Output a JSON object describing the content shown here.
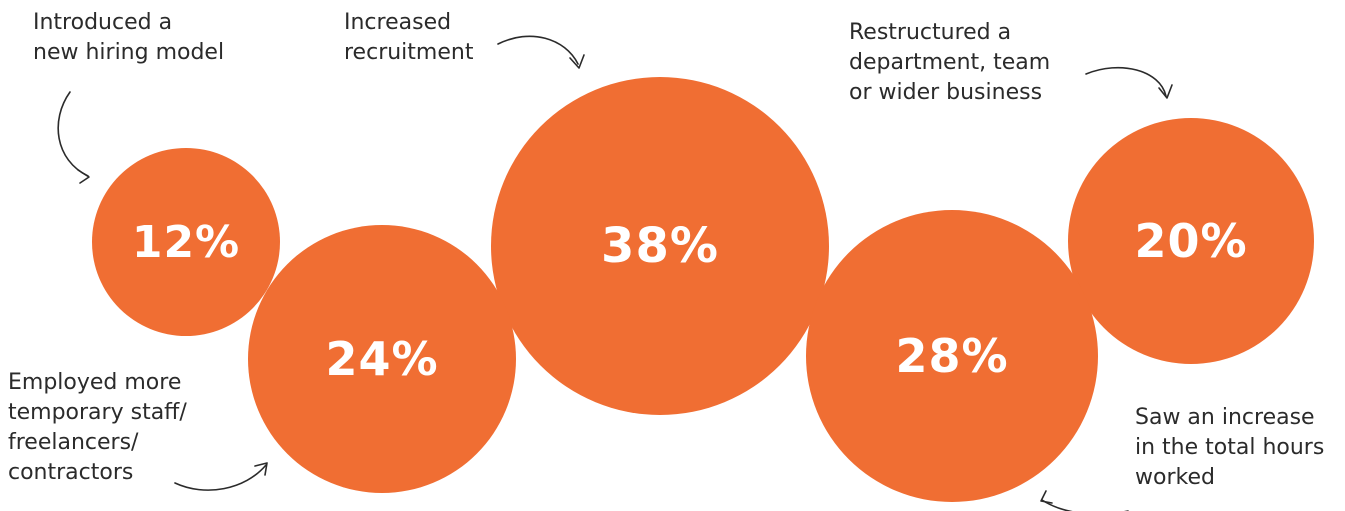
{
  "colors": {
    "bubble": "#f06e33",
    "text": "#2b2b2b",
    "arrow": "#2b2b2b"
  },
  "chart_data": {
    "type": "bubble",
    "items": [
      {
        "label": "Introduced a\nnew hiring model",
        "value": 12,
        "display": "12%"
      },
      {
        "label": "Employed more\ntemporary staff/\nfreelancers/\ncontractors",
        "value": 24,
        "display": "24%"
      },
      {
        "label": "Increased\nrecruitment",
        "value": 38,
        "display": "38%"
      },
      {
        "label": "Saw an increase\nin the total hours\nworked",
        "value": 28,
        "display": "28%"
      },
      {
        "label": "Restructured a\ndepartment, team\nor wider business",
        "value": 20,
        "display": "20%"
      }
    ]
  }
}
